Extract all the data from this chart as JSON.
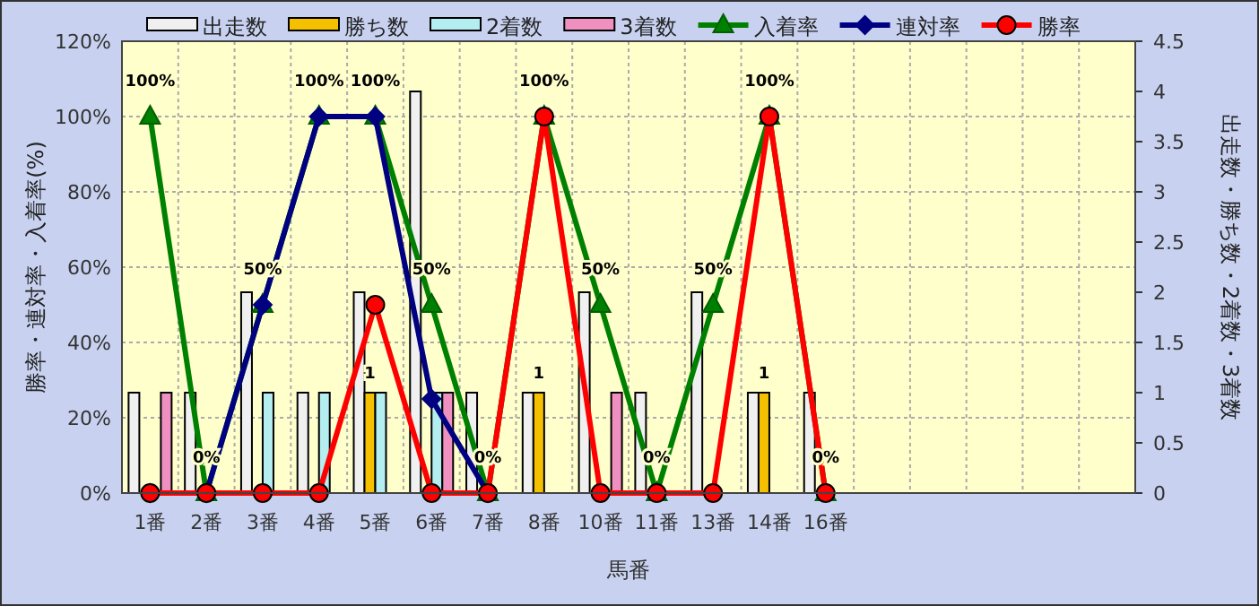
{
  "chart_data": {
    "type": "bar",
    "xlabel": "馬番",
    "ylabel": "勝率・連対率・入着率(%)",
    "y2label": "出走数・勝ち数・2着数・3着数",
    "categories": [
      "1番",
      "2番",
      "3番",
      "4番",
      "5番",
      "6番",
      "7番",
      "8番",
      "10番",
      "11番",
      "13番",
      "14番",
      "16番",
      null,
      null,
      null,
      null,
      null
    ],
    "ylim": [
      0,
      120
    ],
    "yticks": [
      {
        "value": 0,
        "label": "0%"
      },
      {
        "value": 20,
        "label": "20%"
      },
      {
        "value": 40,
        "label": "40%"
      },
      {
        "value": 60,
        "label": "60%"
      },
      {
        "value": 80,
        "label": "80%"
      },
      {
        "value": 100,
        "label": "100%"
      },
      {
        "value": 120,
        "label": "120%"
      }
    ],
    "y2lim": [
      0,
      4.5
    ],
    "y2ticks": [
      0,
      0.5,
      1,
      1.5,
      2,
      2.5,
      3,
      3.5,
      4,
      4.5
    ],
    "grid": true,
    "legend": "top",
    "series": [
      {
        "name": "出走数",
        "axis": "y2",
        "color": "#f0f0f0",
        "values": [
          1,
          1,
          2,
          1,
          2,
          4,
          1,
          1,
          2,
          1,
          2,
          1,
          1,
          null,
          null,
          null,
          null,
          null
        ]
      },
      {
        "name": "勝ち数",
        "axis": "y2",
        "color": "#f5c000",
        "values": [
          0,
          0,
          0,
          0,
          1,
          0,
          0,
          1,
          0,
          0,
          0,
          1,
          0,
          null,
          null,
          null,
          null,
          null
        ],
        "value_labels": [
          null,
          null,
          null,
          null,
          "1",
          null,
          null,
          "1",
          null,
          null,
          null,
          "1",
          null,
          null,
          null,
          null,
          null,
          null
        ]
      },
      {
        "name": "2着数",
        "axis": "y2",
        "color": "#b4eef0",
        "values": [
          0,
          0,
          1,
          1,
          1,
          1,
          0,
          0,
          0,
          0,
          0,
          0,
          0,
          null,
          null,
          null,
          null,
          null
        ]
      },
      {
        "name": "3着数",
        "axis": "y2",
        "color": "#f090c0",
        "values": [
          1,
          0,
          0,
          0,
          0,
          1,
          0,
          0,
          1,
          0,
          0,
          0,
          0,
          null,
          null,
          null,
          null,
          null
        ]
      },
      {
        "name": "入着率",
        "type": "line",
        "color": "#008000",
        "marker": "triangle",
        "values": [
          100,
          0,
          50,
          100,
          100,
          50,
          0,
          100,
          50,
          0,
          50,
          100,
          0,
          null,
          null,
          null,
          null,
          null
        ],
        "value_labels": [
          "100%",
          "0%",
          "50%",
          "100%",
          "100%",
          "50%",
          "0%",
          "100%",
          "50%",
          "0%",
          "50%",
          "100%",
          "0%",
          null,
          null,
          null,
          null,
          null
        ]
      },
      {
        "name": "連対率",
        "type": "line",
        "color": "#000080",
        "marker": "diamond",
        "values": [
          0,
          0,
          50,
          100,
          100,
          25,
          0,
          null,
          null,
          null,
          null,
          null,
          null,
          null,
          null,
          null,
          null,
          null
        ]
      },
      {
        "name": "勝率",
        "type": "line",
        "color": "#ff0000",
        "marker": "circle",
        "values": [
          0,
          0,
          0,
          0,
          50,
          0,
          0,
          100,
          0,
          0,
          0,
          100,
          0,
          null,
          null,
          null,
          null,
          null
        ]
      }
    ]
  }
}
